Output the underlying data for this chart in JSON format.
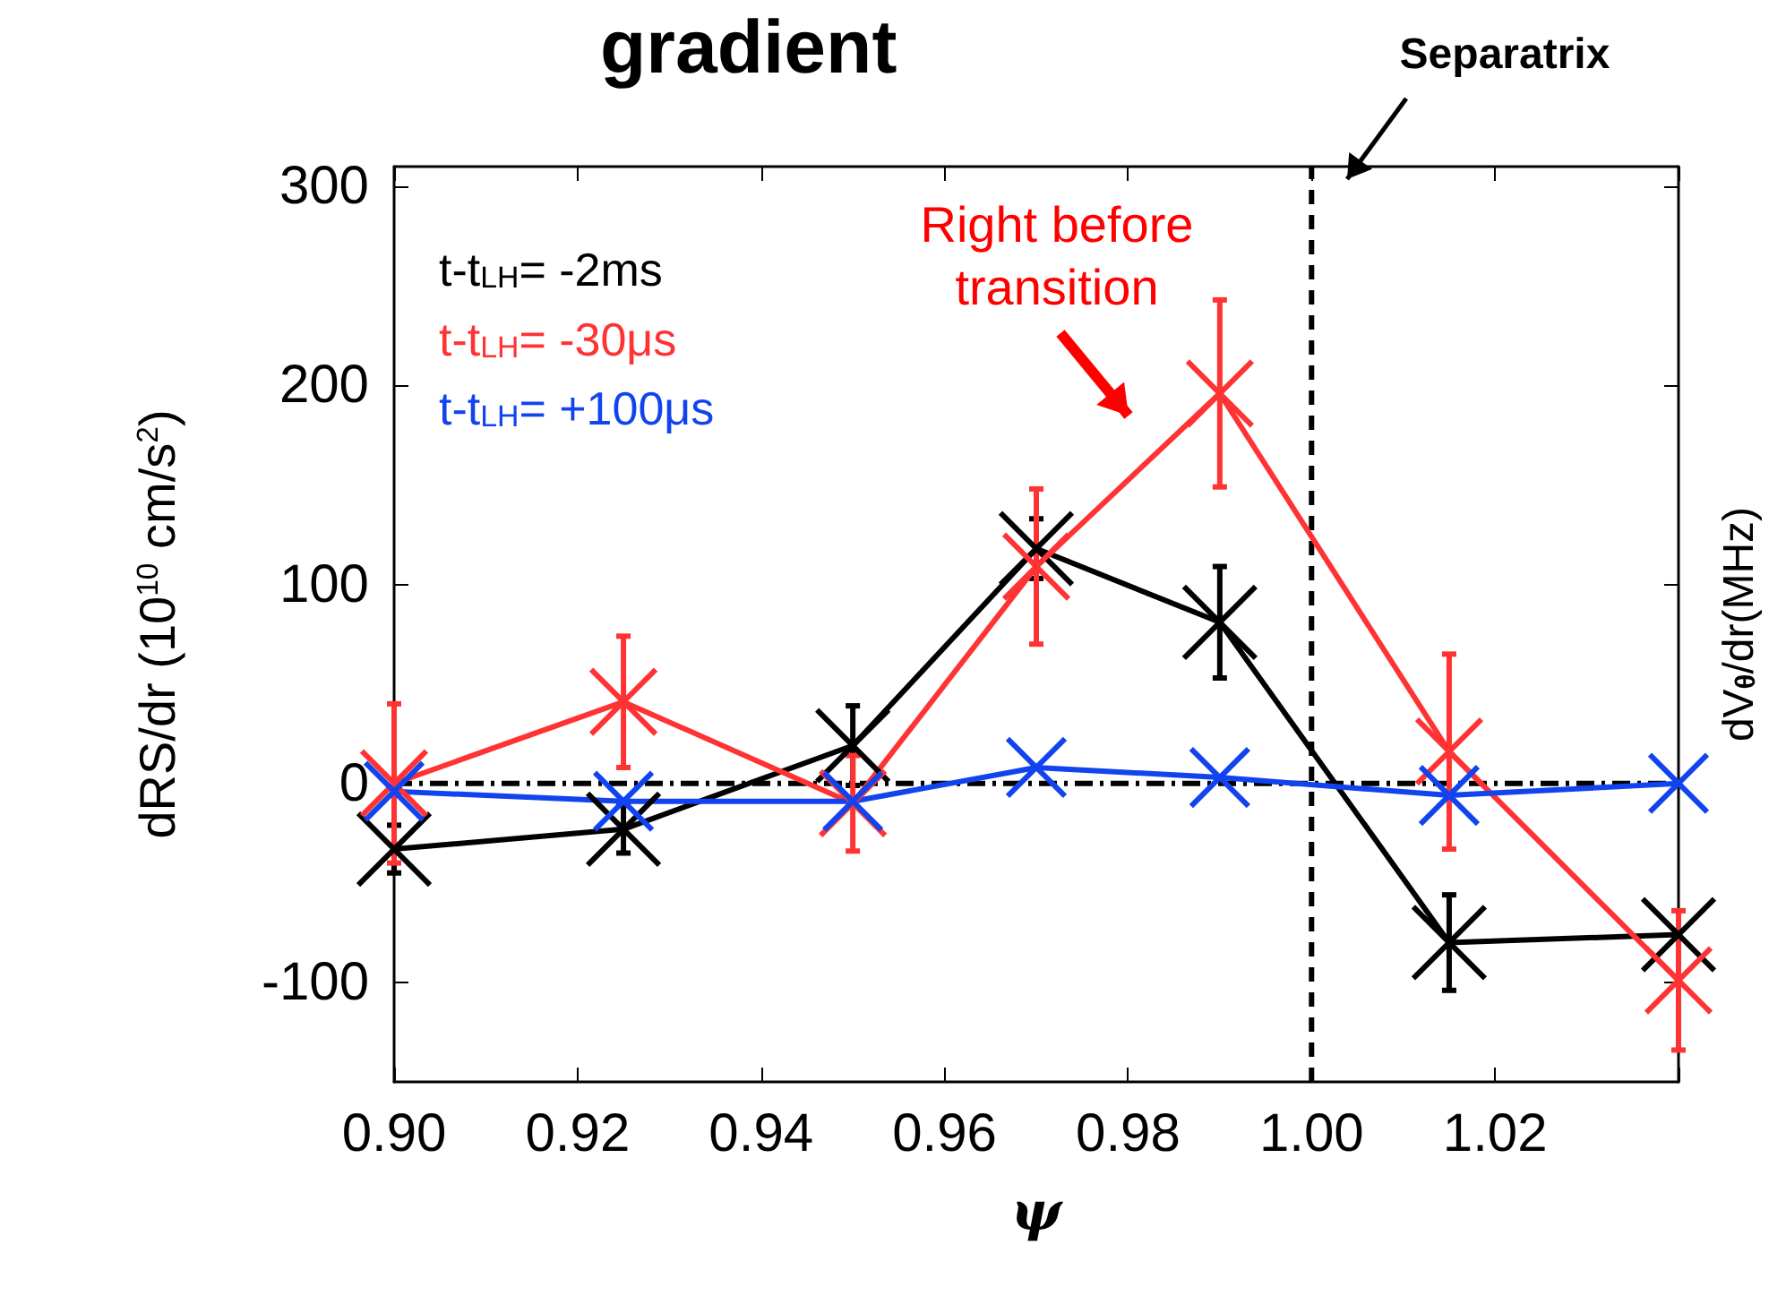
{
  "chart_data": {
    "type": "line",
    "title": "gradient",
    "xlabel": "ψ",
    "ylabel": "dRS/dr (10$^{10}$ cm/s$^{2}$)",
    "y2label": "dV$_{θ}$/dr(MHz)",
    "x": [
      0.9,
      0.925,
      0.95,
      0.97,
      0.99,
      1.015,
      1.04
    ],
    "series": [
      {
        "name": "t-t$_{LH}$= -2ms",
        "color": "#000000",
        "values": [
          -33,
          -23,
          19,
          118,
          81,
          -80,
          -76
        ],
        "errors": [
          12,
          12,
          20,
          15,
          28,
          24,
          null
        ]
      },
      {
        "name": "t-t$_{LH}$= -30μs",
        "color": "#ff3333",
        "values": [
          0,
          41,
          -10,
          109,
          196,
          16,
          -99
        ],
        "errors": [
          40,
          33,
          24,
          39,
          47,
          49,
          35
        ]
      },
      {
        "name": "t-t$_{LH}$= +100μs",
        "color": "#1144ee",
        "values": [
          -4,
          -9,
          -9,
          8,
          3,
          -6,
          0
        ]
      }
    ],
    "xlim": [
      0.9,
      1.04
    ],
    "xticks": [
      {
        "value": 0.9,
        "label": "0.90"
      },
      {
        "value": 0.92,
        "label": "0.92"
      },
      {
        "value": 0.94,
        "label": "0.94"
      },
      {
        "value": 0.96,
        "label": "0.96"
      },
      {
        "value": 0.98,
        "label": "0.98"
      },
      {
        "value": 1.0,
        "label": "1.00"
      },
      {
        "value": 1.02,
        "label": "1.02"
      },
      {
        "value": 1.04,
        "label": null
      }
    ],
    "ylim": [
      -150,
      310
    ],
    "yticks": [
      -100,
      0,
      100,
      200,
      300
    ],
    "ref_lines": [
      {
        "axis": "y",
        "value": 0,
        "color": "#000000",
        "line_style": "dashdot"
      },
      {
        "axis": "x",
        "value": 1.0,
        "color": "#000000",
        "line_style": "dashed"
      }
    ],
    "annotations": [
      "Separatrix",
      "Right before transition"
    ],
    "legend": "top left",
    "marker": "cross",
    "line_style": "solid",
    "grid": false
  }
}
